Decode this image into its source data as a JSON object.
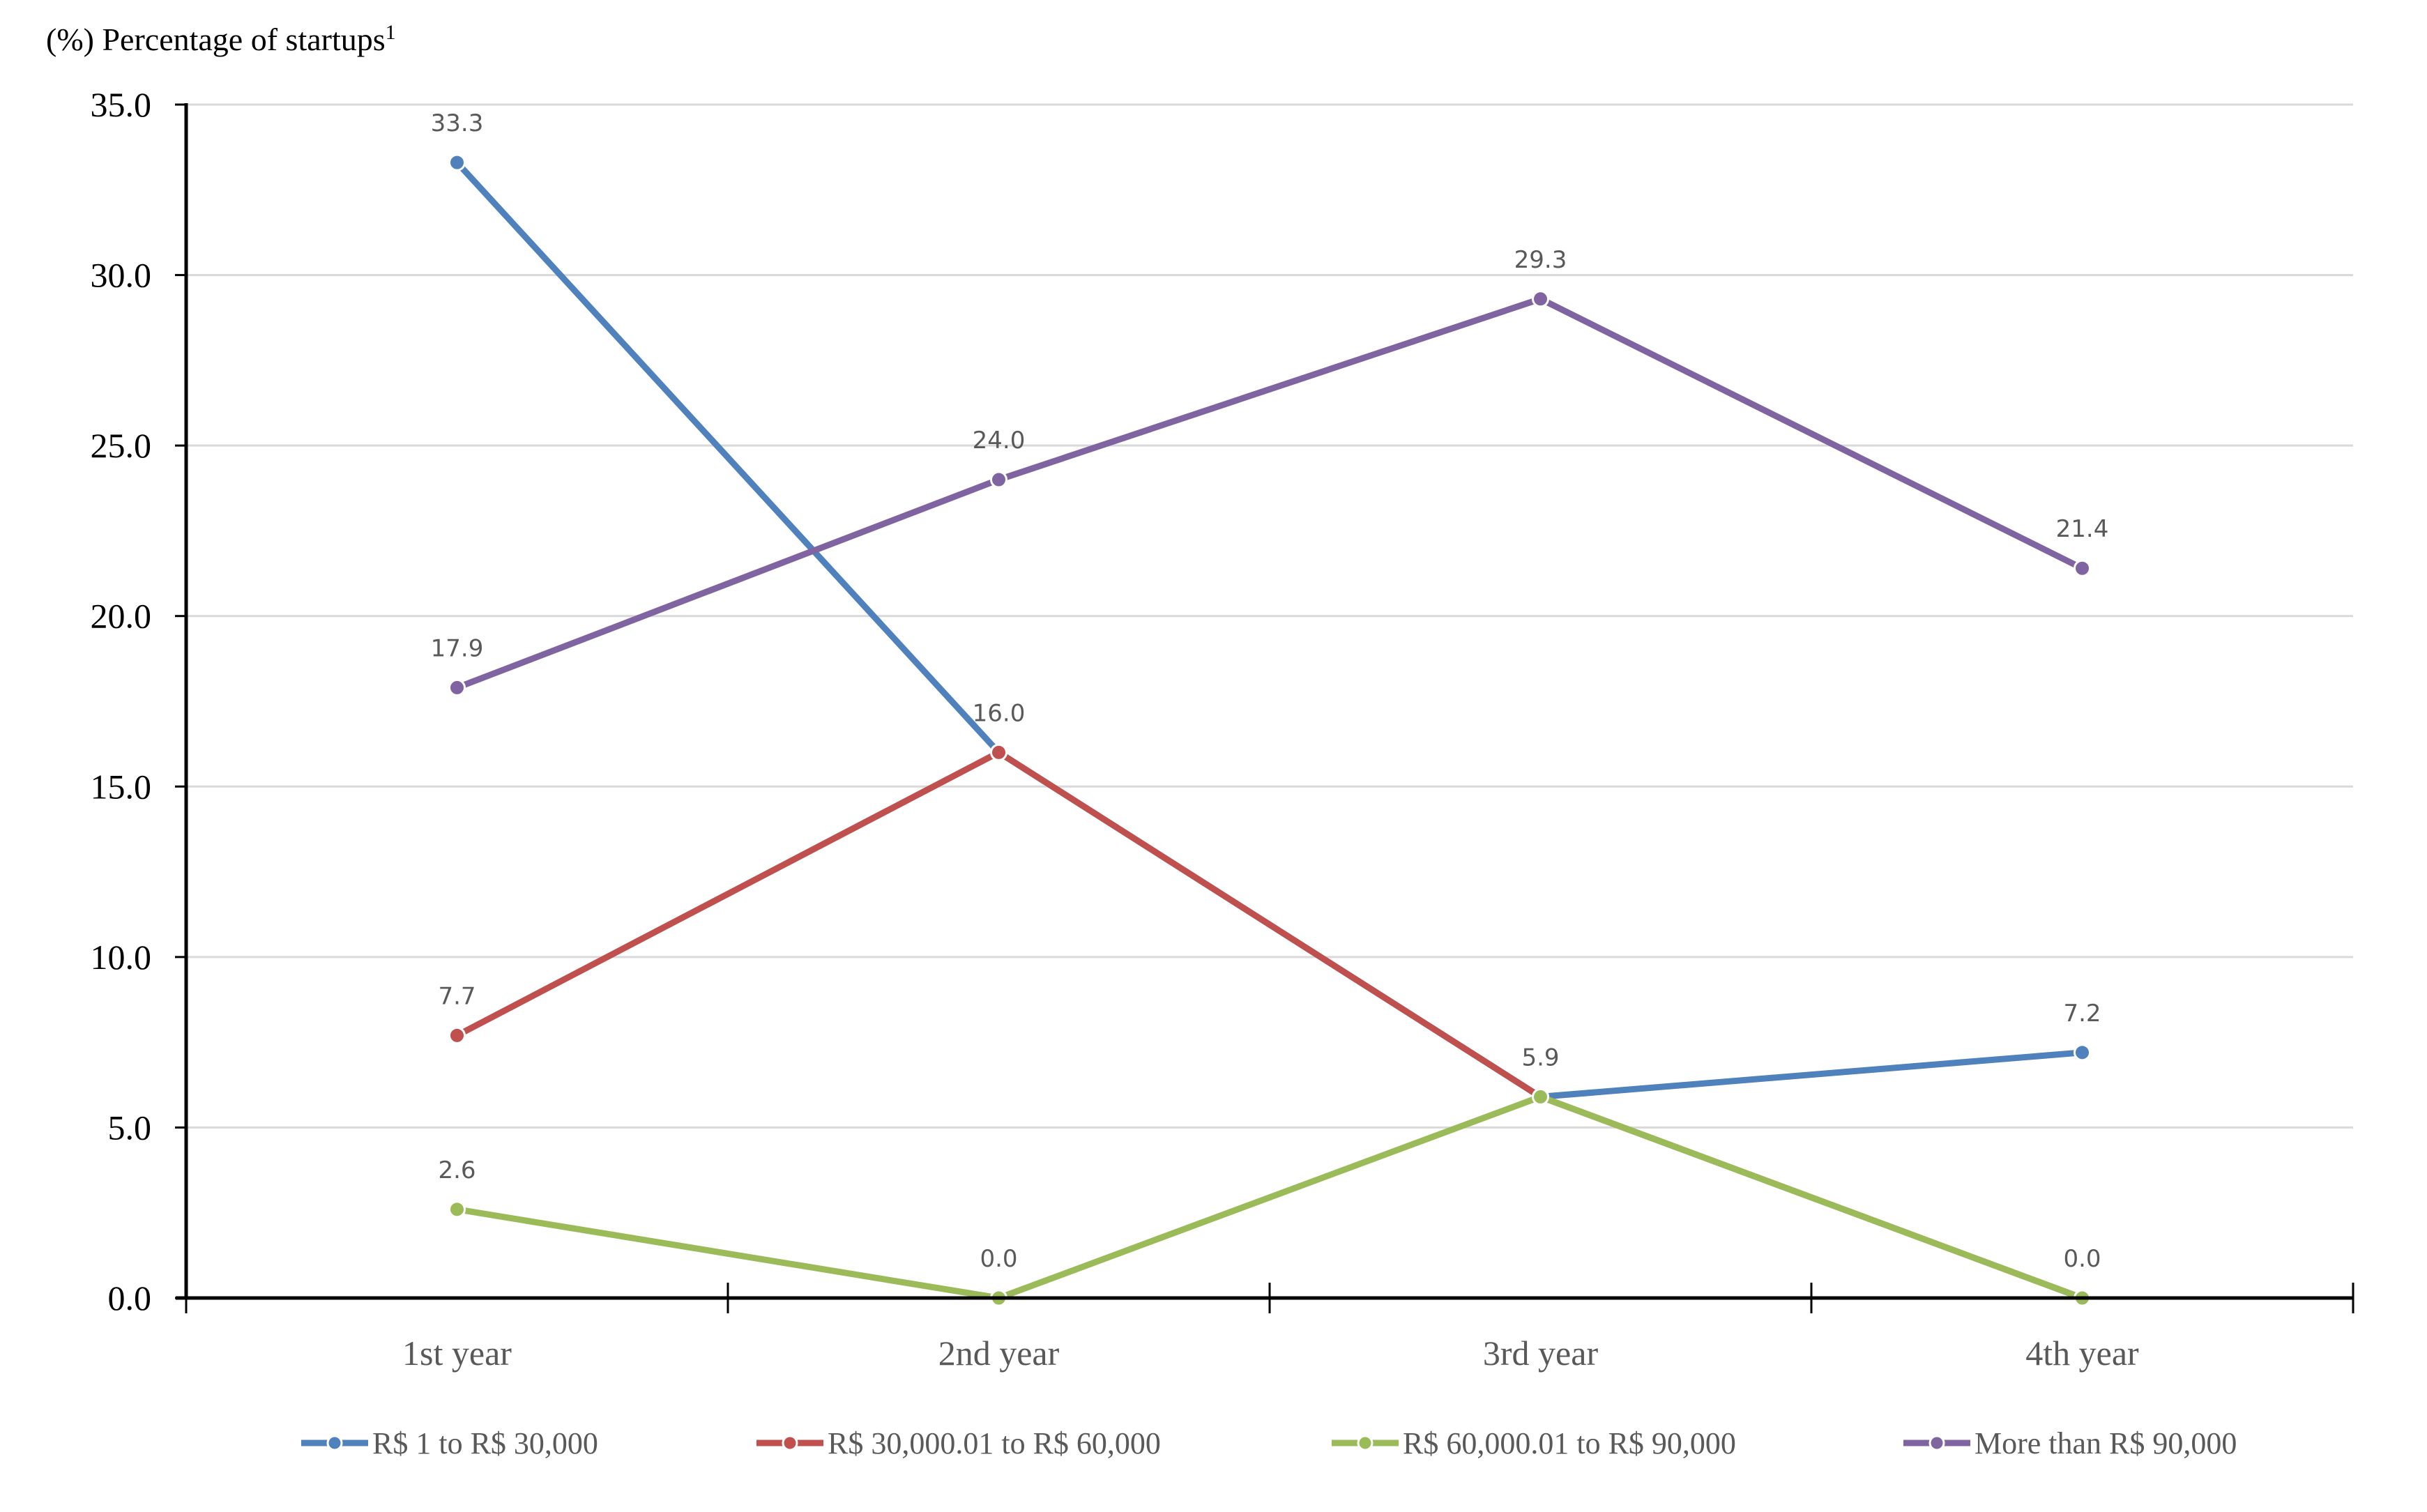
{
  "chart_data": {
    "type": "line",
    "title": "(%) Percentage of startups",
    "title_superscript": "1",
    "xlabel": "",
    "ylabel": "(%) Percentage of startups",
    "categories": [
      "1st year",
      "2nd year",
      "3rd year",
      "4th year"
    ],
    "ylim": [
      0,
      35
    ],
    "yticks": [
      "0.0",
      "5.0",
      "10.0",
      "15.0",
      "20.0",
      "25.0",
      "30.0",
      "35.0"
    ],
    "grid": true,
    "legend_position": "bottom",
    "series": [
      {
        "name": "R$ 1 to R$ 30,000",
        "color": "#4F81BD",
        "values": [
          33.3,
          16.0,
          5.9,
          7.2
        ],
        "labels": [
          "33.3",
          "",
          "",
          "7.2"
        ]
      },
      {
        "name": "R$ 30,000.01 to R$ 60,000",
        "color": "#C0504D",
        "values": [
          7.7,
          16.0,
          5.9,
          0.0
        ],
        "labels": [
          "7.7",
          "16.0",
          "",
          ""
        ]
      },
      {
        "name": "R$ 60,000.01 to R$ 90,000",
        "color": "#9BBB59",
        "values": [
          2.6,
          0.0,
          5.9,
          0.0
        ],
        "labels": [
          "2.6",
          "0.0",
          "5.9",
          "0.0"
        ]
      },
      {
        "name": "More than R$ 90,000",
        "color": "#8064A2",
        "values": [
          17.9,
          24.0,
          29.3,
          21.4
        ],
        "labels": [
          "17.9",
          "24.0",
          "29.3",
          "21.4"
        ]
      }
    ]
  }
}
